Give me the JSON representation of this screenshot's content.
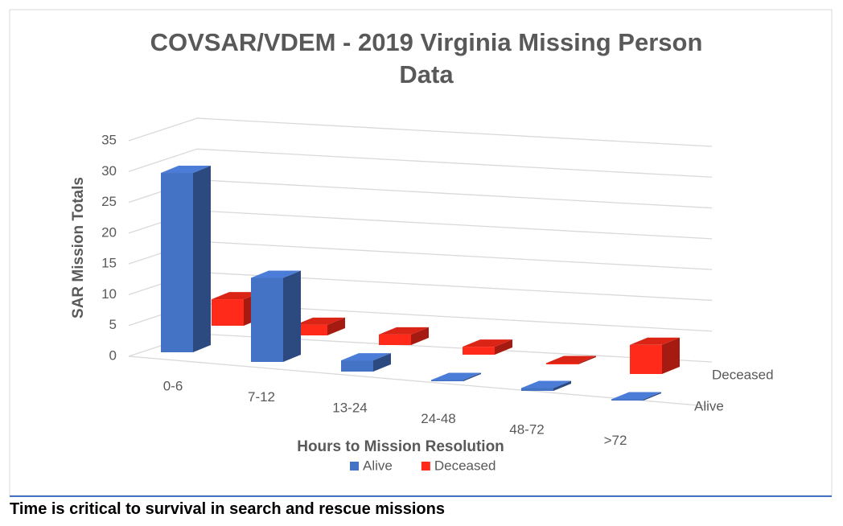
{
  "chart_data": {
    "type": "bar3d",
    "title": "COVSAR/VDEM - 2019 Virginia Missing Person Data",
    "x_label": "Hours to Mission Resolution",
    "y_label": "SAR Mission Totals",
    "categories": [
      "0-6",
      "7-12",
      "13-24",
      "24-48",
      "48-72",
      ">72"
    ],
    "series": [
      {
        "name": "Alive",
        "color": "#4472c4",
        "values": [
          32,
          15,
          2,
          0,
          0.5,
          0.2
        ]
      },
      {
        "name": "Deceased",
        "color": "#ff2a1a",
        "values": [
          5,
          2,
          2,
          1.5,
          0,
          5.5
        ]
      }
    ],
    "ylim": [
      0,
      35
    ],
    "yticks": [
      0,
      5,
      10,
      15,
      20,
      25,
      30,
      35
    ],
    "grid": true,
    "legend": "bottom"
  },
  "caption": "Time is critical to survival in search and rescue missions"
}
